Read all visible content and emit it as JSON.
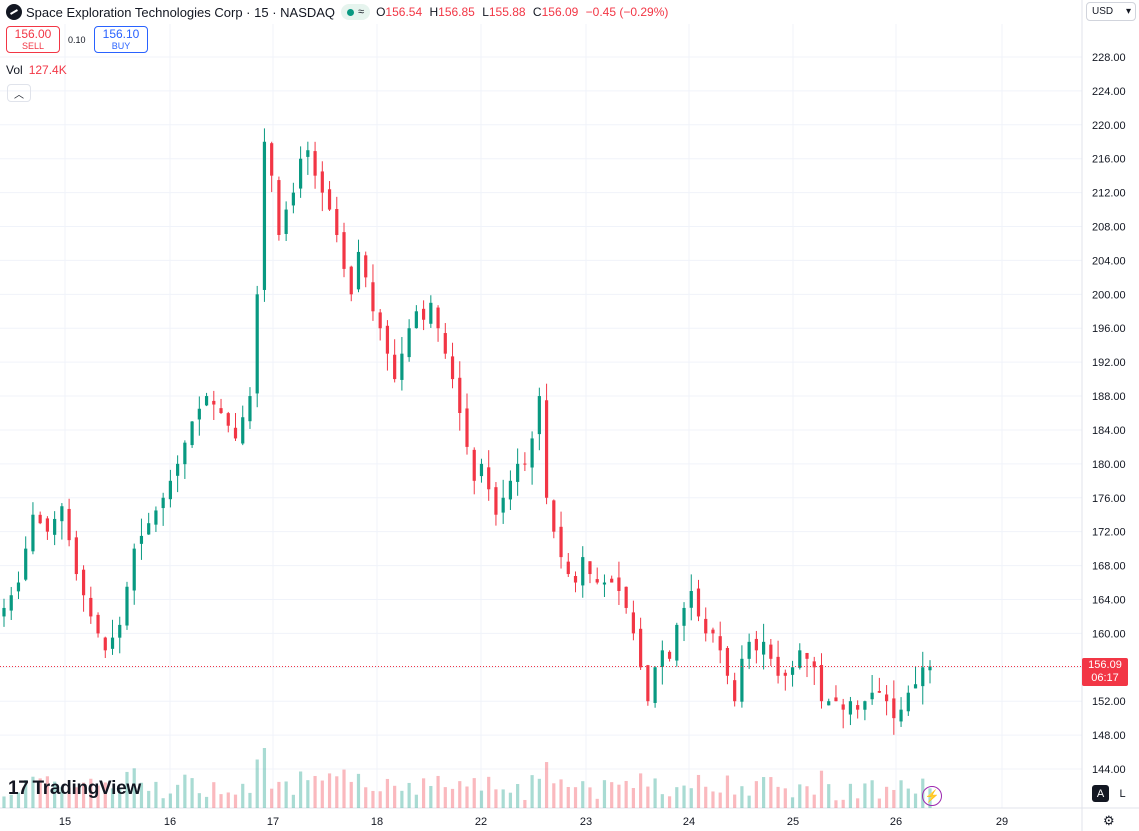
{
  "header": {
    "symbol_title": "Space Exploration Technologies Corp · 15 · NASDAQ",
    "ohlc": {
      "o_label": "O",
      "o_value": "156.54",
      "h_label": "H",
      "h_value": "156.85",
      "l_label": "L",
      "l_value": "155.88",
      "c_label": "C",
      "c_value": "156.09",
      "change": "−0.45 (−0.29%)"
    },
    "status_glyph": "≈"
  },
  "trade": {
    "sell_price": "156.00",
    "sell_label": "SELL",
    "spread": "0.10",
    "buy_price": "156.10",
    "buy_label": "BUY"
  },
  "volume": {
    "label": "Vol",
    "value": "127.4K"
  },
  "currency": {
    "label": "USD"
  },
  "last_price": {
    "value": "156.09",
    "countdown": "06:17"
  },
  "branding": {
    "name": "TradingView"
  },
  "bottom_buttons": {
    "auto": "A",
    "log": "L"
  },
  "colors": {
    "up": "#089981",
    "down": "#f23645",
    "grid": "#f0f3fa",
    "text": "#131722"
  },
  "icons": [
    "chevron-up-icon",
    "chevron-down-icon",
    "gear-icon",
    "lightning-icon",
    "tradingview-logo-icon"
  ],
  "chart_data": {
    "type": "candlestick",
    "interval": "15",
    "y_ticks": [
      144,
      148,
      152,
      156,
      160,
      164,
      168,
      172,
      176,
      180,
      184,
      188,
      192,
      196,
      200,
      204,
      208,
      212,
      216,
      220,
      224,
      228
    ],
    "y_tick_labels": [
      "144.00",
      "148.00",
      "152.00",
      "156.00",
      "160.00",
      "164.00",
      "168.00",
      "172.00",
      "176.00",
      "180.00",
      "184.00",
      "188.00",
      "192.00",
      "196.00",
      "200.00",
      "204.00",
      "208.00",
      "212.00",
      "216.00",
      "220.00",
      "224.00",
      "228.00"
    ],
    "x_labels": [
      "15",
      "16",
      "17",
      "18",
      "22",
      "23",
      "24",
      "25",
      "26",
      "29"
    ],
    "last_price": 156.09,
    "close_path": [
      [
        0,
        163
      ],
      [
        2,
        166
      ],
      [
        4,
        174
      ],
      [
        6,
        172
      ],
      [
        8,
        175
      ],
      [
        10,
        167
      ],
      [
        12,
        162
      ],
      [
        14,
        158
      ],
      [
        16,
        161
      ],
      [
        18,
        170
      ],
      [
        20,
        173
      ],
      [
        22,
        176
      ],
      [
        24,
        180
      ],
      [
        26,
        185
      ],
      [
        28,
        188
      ],
      [
        30,
        186
      ],
      [
        32,
        183
      ],
      [
        34,
        188
      ],
      [
        35,
        200
      ],
      [
        36,
        218
      ],
      [
        37,
        214
      ],
      [
        38,
        207
      ],
      [
        39,
        210
      ],
      [
        40,
        212
      ],
      [
        41,
        216
      ],
      [
        42,
        217
      ],
      [
        43,
        214
      ],
      [
        44,
        212
      ],
      [
        45,
        210
      ],
      [
        46,
        207
      ],
      [
        47,
        203
      ],
      [
        48,
        200
      ],
      [
        49,
        205
      ],
      [
        50,
        202
      ],
      [
        51,
        198
      ],
      [
        52,
        196
      ],
      [
        53,
        193
      ],
      [
        54,
        190
      ],
      [
        55,
        193
      ],
      [
        56,
        196
      ],
      [
        57,
        198
      ],
      [
        58,
        197
      ],
      [
        59,
        199
      ],
      [
        60,
        196
      ],
      [
        61,
        193
      ],
      [
        62,
        190
      ],
      [
        63,
        186
      ],
      [
        64,
        182
      ],
      [
        65,
        178
      ],
      [
        66,
        180
      ],
      [
        67,
        177
      ],
      [
        68,
        174
      ],
      [
        69,
        176
      ],
      [
        70,
        178
      ],
      [
        71,
        180
      ],
      [
        72,
        180
      ],
      [
        73,
        183
      ],
      [
        74,
        188
      ],
      [
        75,
        176
      ],
      [
        76,
        172
      ],
      [
        77,
        169
      ],
      [
        78,
        167
      ],
      [
        79,
        166
      ],
      [
        80,
        169
      ],
      [
        81,
        167
      ],
      [
        82,
        166
      ],
      [
        83,
        166
      ],
      [
        84,
        166
      ],
      [
        85,
        165
      ],
      [
        86,
        163
      ],
      [
        87,
        160
      ],
      [
        88,
        156
      ],
      [
        89,
        152
      ],
      [
        90,
        156
      ],
      [
        91,
        158
      ],
      [
        92,
        157
      ],
      [
        93,
        161
      ],
      [
        94,
        163
      ],
      [
        95,
        165
      ],
      [
        96,
        162
      ],
      [
        97,
        160
      ],
      [
        98,
        160
      ],
      [
        99,
        158
      ],
      [
        100,
        155
      ],
      [
        101,
        152
      ],
      [
        102,
        157
      ],
      [
        103,
        159
      ],
      [
        104,
        158
      ],
      [
        105,
        159
      ],
      [
        106,
        157
      ],
      [
        107,
        155
      ],
      [
        108,
        155
      ],
      [
        109,
        156
      ],
      [
        110,
        158
      ],
      [
        111,
        157
      ],
      [
        112,
        156
      ],
      [
        113,
        152
      ],
      [
        114,
        152
      ],
      [
        115,
        152
      ],
      [
        116,
        151
      ],
      [
        117,
        152
      ],
      [
        118,
        151
      ],
      [
        119,
        152
      ],
      [
        120,
        153
      ],
      [
        121,
        153
      ],
      [
        122,
        152
      ],
      [
        123,
        150
      ],
      [
        124,
        151
      ],
      [
        125,
        153
      ],
      [
        126,
        154
      ],
      [
        127,
        156
      ],
      [
        128,
        156.09
      ]
    ],
    "volume_approx": "candles; volume histogram bars along the bottom"
  }
}
